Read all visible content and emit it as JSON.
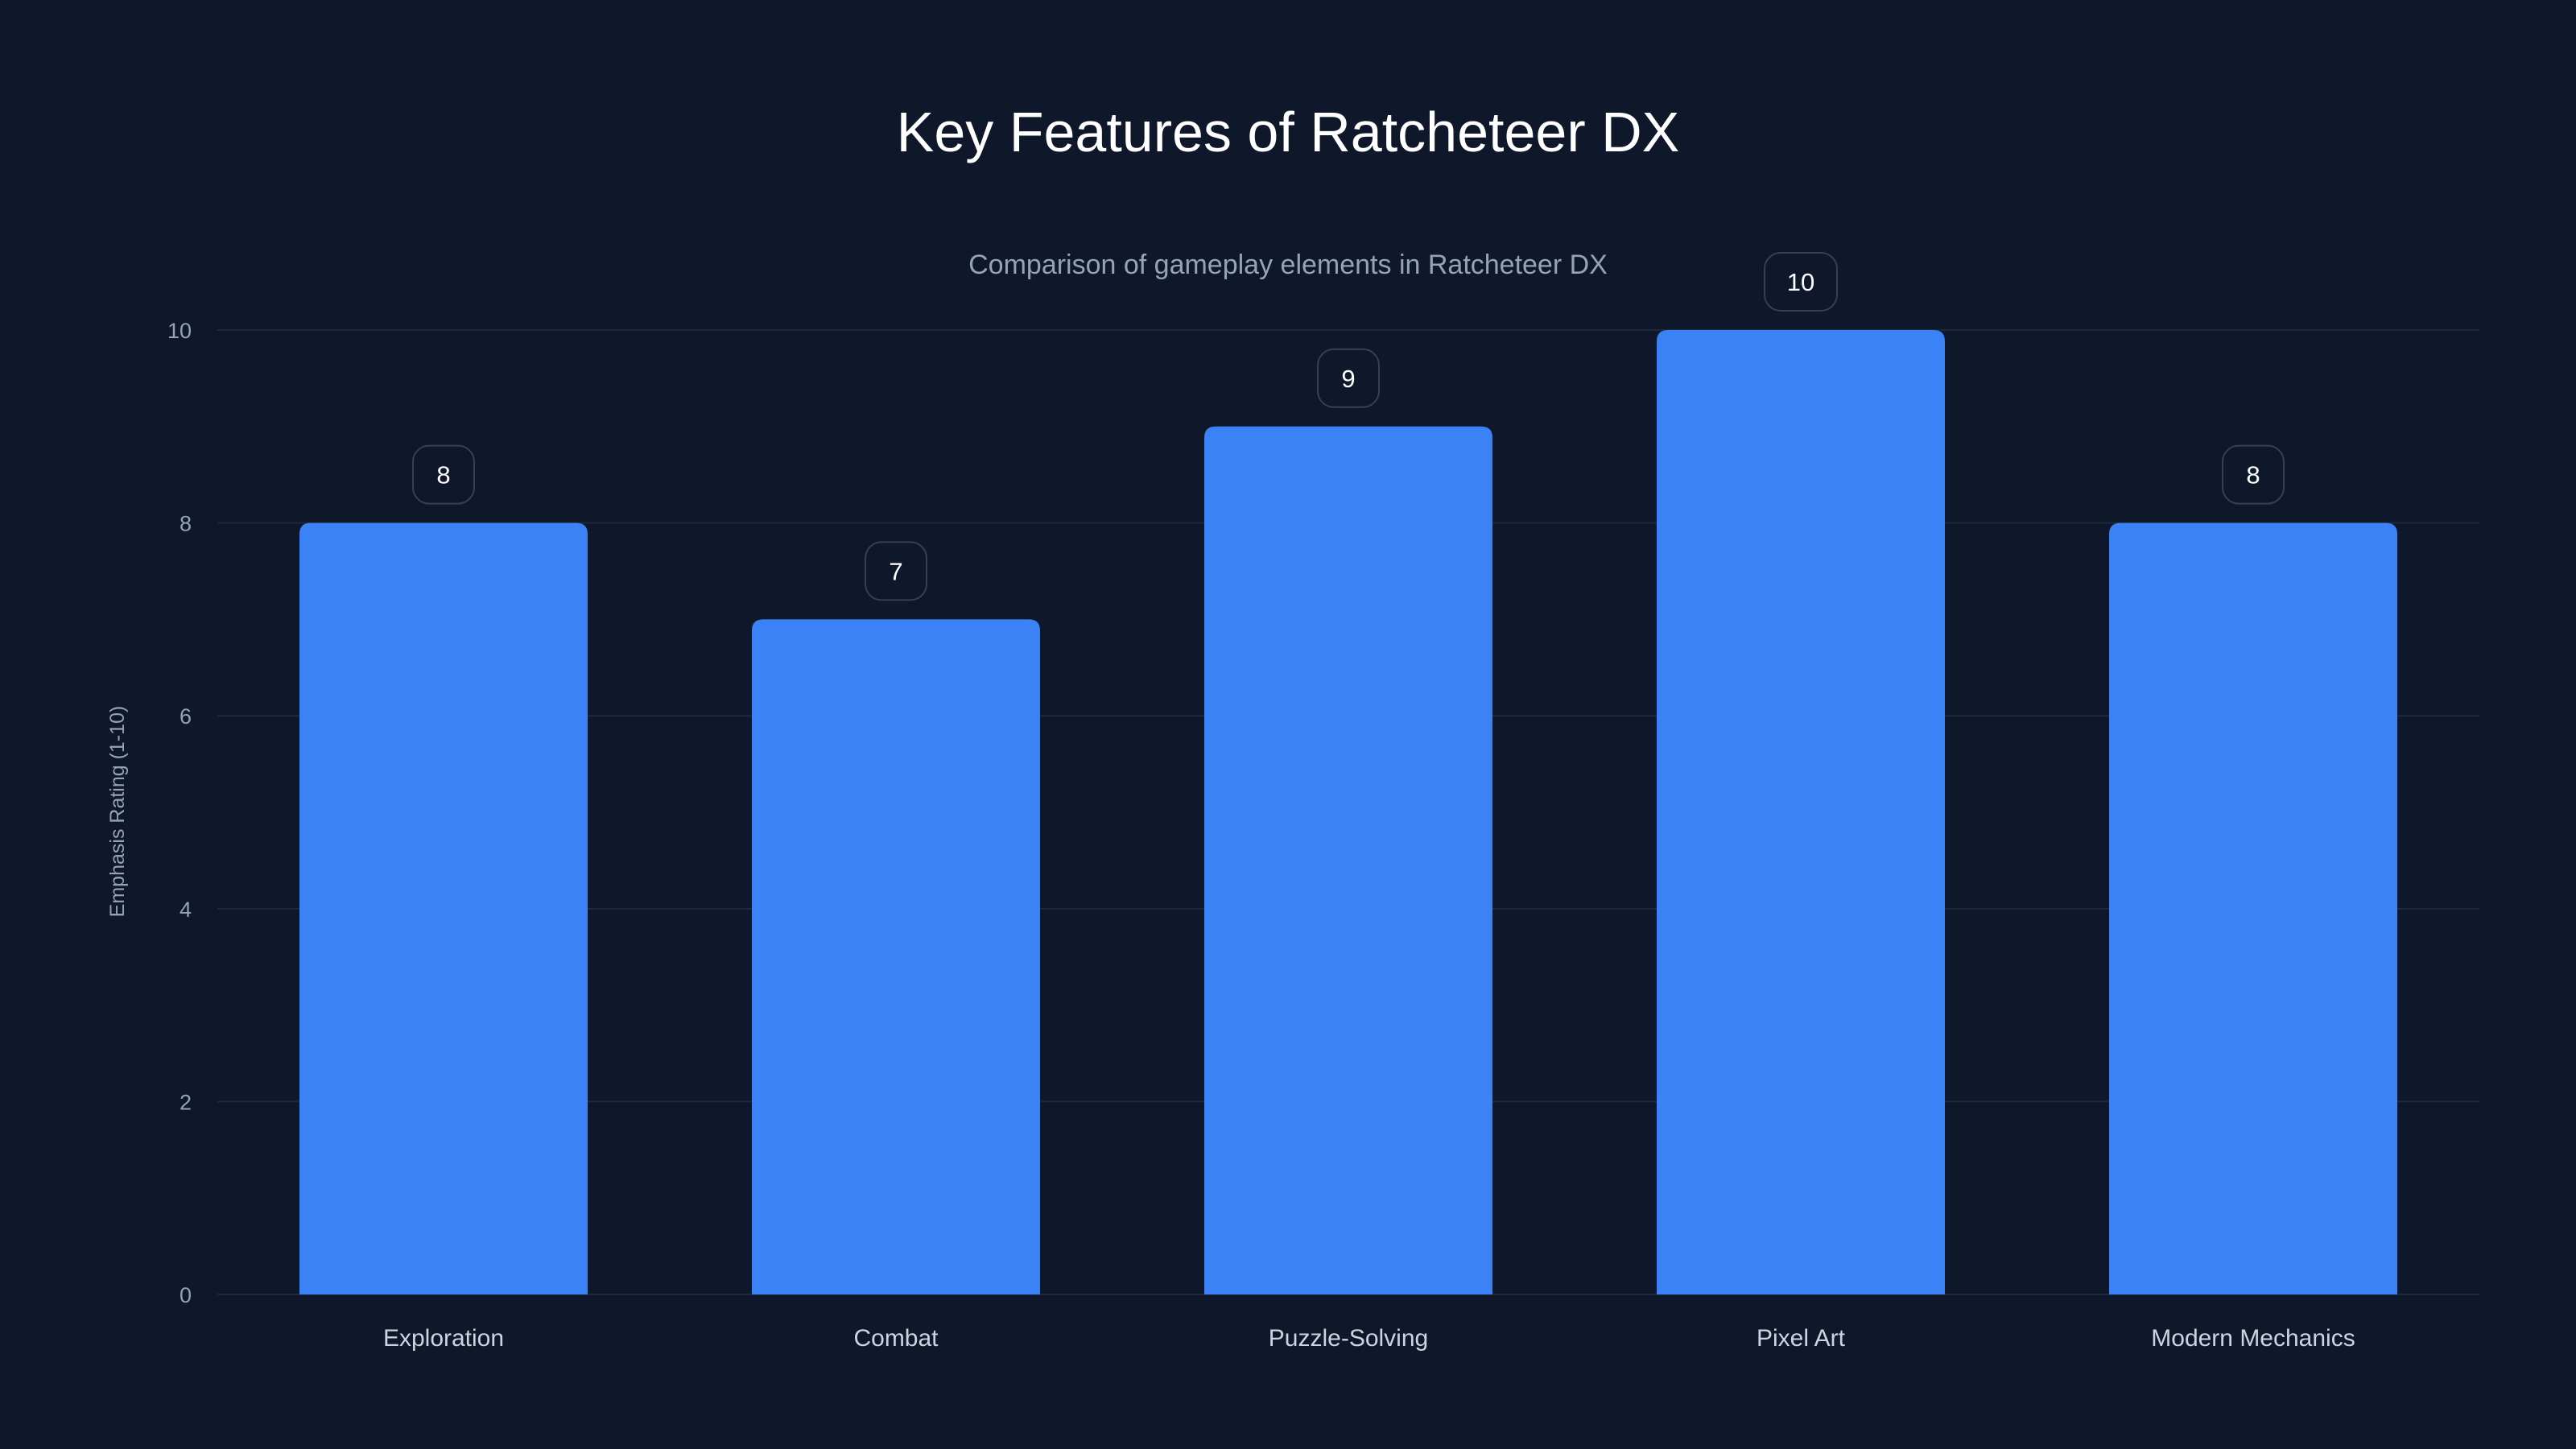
{
  "chart_data": {
    "type": "bar",
    "title": "Key Features of Ratcheteer DX",
    "subtitle": "Comparison of gameplay elements in Ratcheteer DX",
    "xlabel": "",
    "ylabel": "Emphasis Rating (1-10)",
    "categories": [
      "Exploration",
      "Combat",
      "Puzzle-Solving",
      "Pixel Art",
      "Modern Mechanics"
    ],
    "values": [
      8,
      7,
      9,
      10,
      8
    ],
    "ylim": [
      0,
      10
    ],
    "yticks": [
      0,
      2,
      4,
      6,
      8,
      10
    ],
    "grid": true,
    "legend": "none",
    "colors": {
      "bar": "#3b82f6",
      "background": "#0f172a",
      "grid": "#1e293b",
      "label_border": "#334155"
    }
  }
}
